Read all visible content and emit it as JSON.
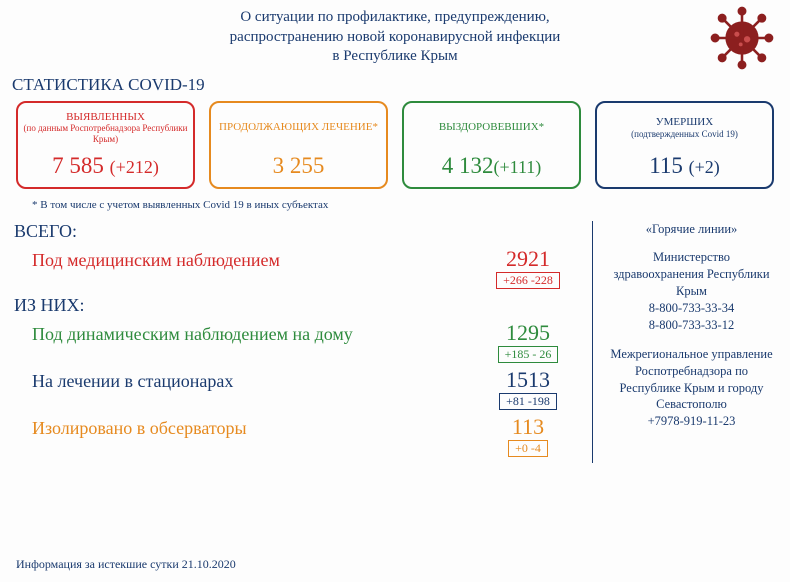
{
  "header": {
    "line1": "О ситуации по профилактике, предупреждению,",
    "line2": "распространению новой коронавирусной инфекции",
    "line3": "в Республике Крым"
  },
  "stats_title": "СТАТИСТИКА COVID-19",
  "cards": [
    {
      "label": "ВЫЯВЛЕННЫХ",
      "sub": "(по данным Роспотребнадзора Республики Крым)",
      "value": "7 585 ",
      "delta": "(+212)",
      "color": "#d42a2a"
    },
    {
      "label": "ПРОДОЛЖАЮЩИХ ЛЕЧЕНИЕ*",
      "sub": "",
      "value": "3 255",
      "delta": "",
      "color": "#e68a1f"
    },
    {
      "label": "ВЫЗДОРОВЕВШИХ*",
      "sub": "",
      "value": "4 132",
      "delta": "(+111)",
      "color": "#2e8b3d"
    },
    {
      "label": "УМЕРШИХ",
      "sub": "(подтвержденных Covid 19)",
      "value": "115 ",
      "delta": "(+2)",
      "color": "#1a3a6e"
    }
  ],
  "footnote": "* В том числе с учетом выявленных Covid 19  в иных субъектах",
  "total_label": "ВСЕГО:",
  "breakdown_label": "ИЗ НИХ:",
  "rows": [
    {
      "label": "Под медицинским наблюдением",
      "value": "2921",
      "change": "+266 -228",
      "color": "#d42a2a"
    },
    {
      "label": "Под динамическим наблюдением на дому",
      "value": "1295",
      "change": "+185 - 26",
      "color": "#2e8b3d"
    },
    {
      "label": "На лечении в стационарах",
      "value": "1513",
      "change": "+81 -198",
      "color": "#1a3a6e"
    },
    {
      "label": "Изолировано в обсерваторы",
      "value": "113",
      "change": "+0 -4",
      "color": "#e68a1f"
    }
  ],
  "hotlines": {
    "title": "«Горячие линии»",
    "blocks": [
      {
        "text": "Министерство здравоохранения Республики Крым",
        "phones": [
          "8-800-733-33-34",
          "8-800-733-33-12"
        ]
      },
      {
        "text": "Межрегиональное управление Роспотребнадзора по Республике Крым и городу Севастополю",
        "phones": [
          "+7978-919-11-23"
        ]
      }
    ]
  },
  "footer_date": "Информация за истекшие сутки 21.10.2020"
}
